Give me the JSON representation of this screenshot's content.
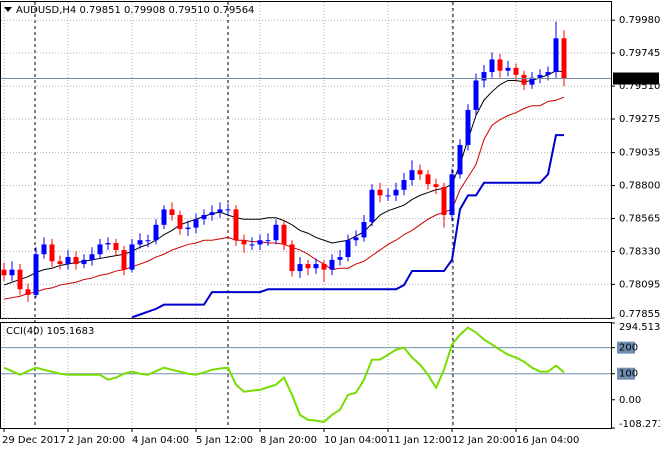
{
  "chart_data": [
    {
      "type": "candlestick",
      "title": "AUDUSD,H4  0.79851 0.79908 0.79510 0.79564",
      "categories": [
        "29 Dec 2017",
        null,
        null,
        null,
        null,
        null,
        null,
        null,
        "2 Jan 20:00",
        null,
        null,
        null,
        null,
        null,
        null,
        null,
        "4 Jan 04:00",
        null,
        null,
        null,
        null,
        null,
        null,
        null,
        "5 Jan 12:00",
        null,
        null,
        null,
        null,
        null,
        null,
        null,
        "8 Jan 20:00",
        null,
        null,
        null,
        null,
        null,
        null,
        null,
        "10 Jan 04:00",
        null,
        null,
        null,
        null,
        null,
        null,
        null,
        "11 Jan 12:00",
        null,
        null,
        null,
        null,
        null,
        null,
        null,
        "12 Jan 20:00",
        null,
        null,
        null,
        null,
        null,
        null,
        null,
        "16 Jan 04:00",
        null,
        null,
        null,
        null,
        null,
        null
      ],
      "open": [
        0.782,
        0.7816,
        0.782,
        0.7806,
        0.7802,
        0.7831,
        0.7838,
        0.7826,
        0.7824,
        0.7829,
        0.7824,
        0.7827,
        0.7831,
        0.7838,
        0.7839,
        0.7834,
        0.782,
        0.7838,
        0.7841,
        0.7841,
        0.7852,
        0.7863,
        0.7859,
        0.7849,
        0.785,
        0.7856,
        0.7859,
        0.7861,
        0.7863,
        0.7863,
        0.7841,
        0.7838,
        0.7838,
        0.7841,
        0.7841,
        0.7852,
        0.7838,
        0.7819,
        0.7824,
        0.7821,
        0.7824,
        0.782,
        0.7827,
        0.7829,
        0.7841,
        0.7843,
        0.7854,
        0.7877,
        0.7873,
        0.7873,
        0.7877,
        0.7884,
        0.7891,
        0.7888,
        0.7881,
        0.7879,
        0.7859,
        0.7888,
        0.7909,
        0.7934,
        0.7955,
        0.7961,
        0.797,
        0.7962,
        0.7964,
        0.7959,
        0.7952,
        0.7957,
        0.7959,
        0.7961,
        0.79851
      ],
      "high": [
        0.7825,
        0.7826,
        0.7824,
        0.781,
        0.7836,
        0.7843,
        0.7842,
        0.783,
        0.7834,
        0.7833,
        0.7831,
        0.7836,
        0.7842,
        0.7843,
        0.7842,
        0.7837,
        0.7842,
        0.7846,
        0.7845,
        0.7856,
        0.7866,
        0.7868,
        0.7862,
        0.7855,
        0.786,
        0.7863,
        0.7866,
        0.7868,
        0.7867,
        0.7866,
        0.7845,
        0.7843,
        0.7845,
        0.7846,
        0.7856,
        0.7855,
        0.7841,
        0.7829,
        0.7827,
        0.7828,
        0.7827,
        0.7831,
        0.7834,
        0.7845,
        0.7848,
        0.7859,
        0.7881,
        0.7882,
        0.7878,
        0.7882,
        0.7889,
        0.7898,
        0.7895,
        0.7891,
        0.7885,
        0.7882,
        0.7892,
        0.7913,
        0.7938,
        0.796,
        0.7966,
        0.7975,
        0.7974,
        0.7969,
        0.7967,
        0.7962,
        0.7961,
        0.7963,
        0.7965,
        0.7997,
        0.79908
      ],
      "low": [
        0.7812,
        0.7812,
        0.7802,
        0.7797,
        0.78,
        0.7828,
        0.7822,
        0.782,
        0.782,
        0.782,
        0.7821,
        0.7823,
        0.7828,
        0.7834,
        0.783,
        0.7816,
        0.7818,
        0.7835,
        0.7836,
        0.7838,
        0.7849,
        0.7855,
        0.7845,
        0.7844,
        0.7846,
        0.7852,
        0.7855,
        0.7857,
        0.7858,
        0.7837,
        0.7832,
        0.7834,
        0.7834,
        0.7837,
        0.7838,
        0.7834,
        0.7815,
        0.7814,
        0.7816,
        0.7817,
        0.7811,
        0.7816,
        0.7823,
        0.7826,
        0.7837,
        0.784,
        0.7851,
        0.7868,
        0.7869,
        0.7869,
        0.7873,
        0.788,
        0.7884,
        0.7877,
        0.7874,
        0.785,
        0.7855,
        0.7885,
        0.7905,
        0.793,
        0.795,
        0.7957,
        0.7957,
        0.7958,
        0.7954,
        0.7948,
        0.7949,
        0.7953,
        0.7955,
        0.7957,
        0.7951
      ],
      "close": [
        0.7816,
        0.782,
        0.7806,
        0.7802,
        0.7831,
        0.7838,
        0.7826,
        0.7824,
        0.7829,
        0.7824,
        0.7827,
        0.7831,
        0.7838,
        0.7839,
        0.7834,
        0.782,
        0.7838,
        0.7841,
        0.7841,
        0.7852,
        0.7863,
        0.7859,
        0.7849,
        0.785,
        0.7856,
        0.7859,
        0.7861,
        0.7863,
        0.7863,
        0.7841,
        0.7838,
        0.7838,
        0.7841,
        0.7841,
        0.7852,
        0.7838,
        0.7819,
        0.7824,
        0.7821,
        0.7824,
        0.782,
        0.7827,
        0.7829,
        0.7841,
        0.7843,
        0.7854,
        0.7877,
        0.7873,
        0.7873,
        0.7877,
        0.7884,
        0.7891,
        0.7888,
        0.7881,
        0.7879,
        0.7859,
        0.7888,
        0.7909,
        0.7934,
        0.7955,
        0.7961,
        0.797,
        0.7962,
        0.7964,
        0.7959,
        0.7952,
        0.7957,
        0.7959,
        0.7961,
        0.79851,
        0.79564
      ],
      "up_color": "#0000ff",
      "down_color": "#ff0000",
      "overlays": [
        {
          "color": "#000000",
          "values": [
            0.7809,
            0.7811,
            0.7813,
            0.7815,
            0.7818,
            0.782,
            0.7821,
            0.7823,
            0.7824,
            0.7825,
            0.7826,
            0.7827,
            0.7828,
            0.7829,
            0.783,
            0.7831,
            0.7833,
            0.7836,
            0.7838,
            0.7841,
            0.7845,
            0.7848,
            0.7852,
            0.7854,
            0.7856,
            0.7858,
            0.786,
            0.7861,
            0.7859,
            0.7857,
            0.7856,
            0.7856,
            0.7856,
            0.7857,
            0.7857,
            0.7855,
            0.7852,
            0.7848,
            0.7846,
            0.7843,
            0.7841,
            0.7839,
            0.784,
            0.7841,
            0.7844,
            0.7847,
            0.7853,
            0.7859,
            0.7862,
            0.7864,
            0.7866,
            0.787,
            0.7873,
            0.7875,
            0.7877,
            0.7878,
            0.7881,
            0.7895,
            0.7913,
            0.793,
            0.7941,
            0.7947,
            0.7952,
            0.7955,
            0.7955,
            0.7954,
            0.7955,
            0.7957,
            0.7959,
            0.7962,
            0.7961
          ]
        },
        {
          "color": "#cc0000",
          "values": [
            0.7799,
            0.78,
            0.7801,
            0.7803,
            0.7804,
            0.7806,
            0.7807,
            0.7809,
            0.781,
            0.7811,
            0.7813,
            0.7814,
            0.7816,
            0.7817,
            0.7819,
            0.782,
            0.7822,
            0.7824,
            0.7826,
            0.7829,
            0.7831,
            0.7834,
            0.7836,
            0.7838,
            0.7839,
            0.7841,
            0.7841,
            0.7842,
            0.7843,
            0.7841,
            0.7841,
            0.784,
            0.784,
            0.7839,
            0.7839,
            0.7838,
            0.7836,
            0.7834,
            0.7831,
            0.7827,
            0.7824,
            0.782,
            0.7821,
            0.7821,
            0.7824,
            0.7826,
            0.783,
            0.7834,
            0.7838,
            0.7841,
            0.7845,
            0.7848,
            0.7852,
            0.7856,
            0.7859,
            0.7861,
            0.7863,
            0.7877,
            0.7886,
            0.7895,
            0.7913,
            0.7923,
            0.7927,
            0.793,
            0.7932,
            0.7935,
            0.7937,
            0.7937,
            0.794,
            0.7941,
            0.7943
          ]
        },
        {
          "color": "#0000cc",
          "values": [
            null,
            null,
            null,
            null,
            null,
            null,
            null,
            null,
            null,
            null,
            null,
            null,
            null,
            null,
            null,
            null,
            0.7786,
            0.7788,
            0.779,
            0.7792,
            0.7795,
            0.7795,
            0.7795,
            0.7795,
            0.7795,
            0.7795,
            0.7804,
            0.7804,
            0.7804,
            0.7804,
            0.7804,
            0.7804,
            0.7804,
            0.7806,
            0.7806,
            0.7806,
            0.7806,
            0.7806,
            0.7806,
            0.7806,
            0.7806,
            0.7806,
            0.7806,
            0.7806,
            0.7806,
            0.7806,
            0.7806,
            0.7806,
            0.7806,
            0.7806,
            0.7809,
            0.7819,
            0.7819,
            0.7819,
            0.7819,
            0.7819,
            0.7827,
            0.7863,
            0.7873,
            0.7873,
            0.7882,
            0.7882,
            0.7882,
            0.7882,
            0.7882,
            0.7882,
            0.7882,
            0.7882,
            0.7888,
            0.7916,
            0.7916
          ]
        }
      ],
      "ylim": [
        0.77855,
        0.8011
      ],
      "yticks": [
        {
          "value": 0.7998,
          "label": "0.79980"
        },
        0.79745,
        {
          "value": 0.7951,
          "label": "0.79510"
        },
        0.79275,
        0.79035,
        {
          "value": 0.788,
          "label": "0.78800"
        },
        0.78565,
        {
          "value": 0.7833,
          "label": "0.78330"
        },
        0.78095,
        0.77855
      ],
      "grid": true
    },
    {
      "type": "line",
      "title": "CCI(40) 105.1683",
      "color": "#77dd00",
      "values": [
        123,
        110,
        96,
        110,
        123,
        115,
        108,
        100,
        96,
        96,
        96,
        96,
        96,
        77,
        85,
        100,
        108,
        100,
        96,
        110,
        123,
        115,
        108,
        100,
        96,
        105,
        115,
        120,
        123,
        58,
        31,
        35,
        38,
        48,
        58,
        85,
        19,
        -58,
        -77,
        -80,
        -85,
        -58,
        -38,
        19,
        27,
        77,
        154,
        154,
        173,
        192,
        200,
        162,
        135,
        96,
        46,
        115,
        212,
        250,
        277,
        258,
        231,
        212,
        192,
        173,
        162,
        146,
        123,
        108,
        108,
        131,
        105.1683
      ],
      "ylim": [
        -108.2739,
        294.513
      ],
      "yticks": [
        294.513,
        200,
        100,
        {
          "value": 0,
          "label": "0.00"
        },
        -108.2739
      ],
      "levels": [
        200,
        100
      ],
      "level_color": "#6f8fb0"
    }
  ]
}
